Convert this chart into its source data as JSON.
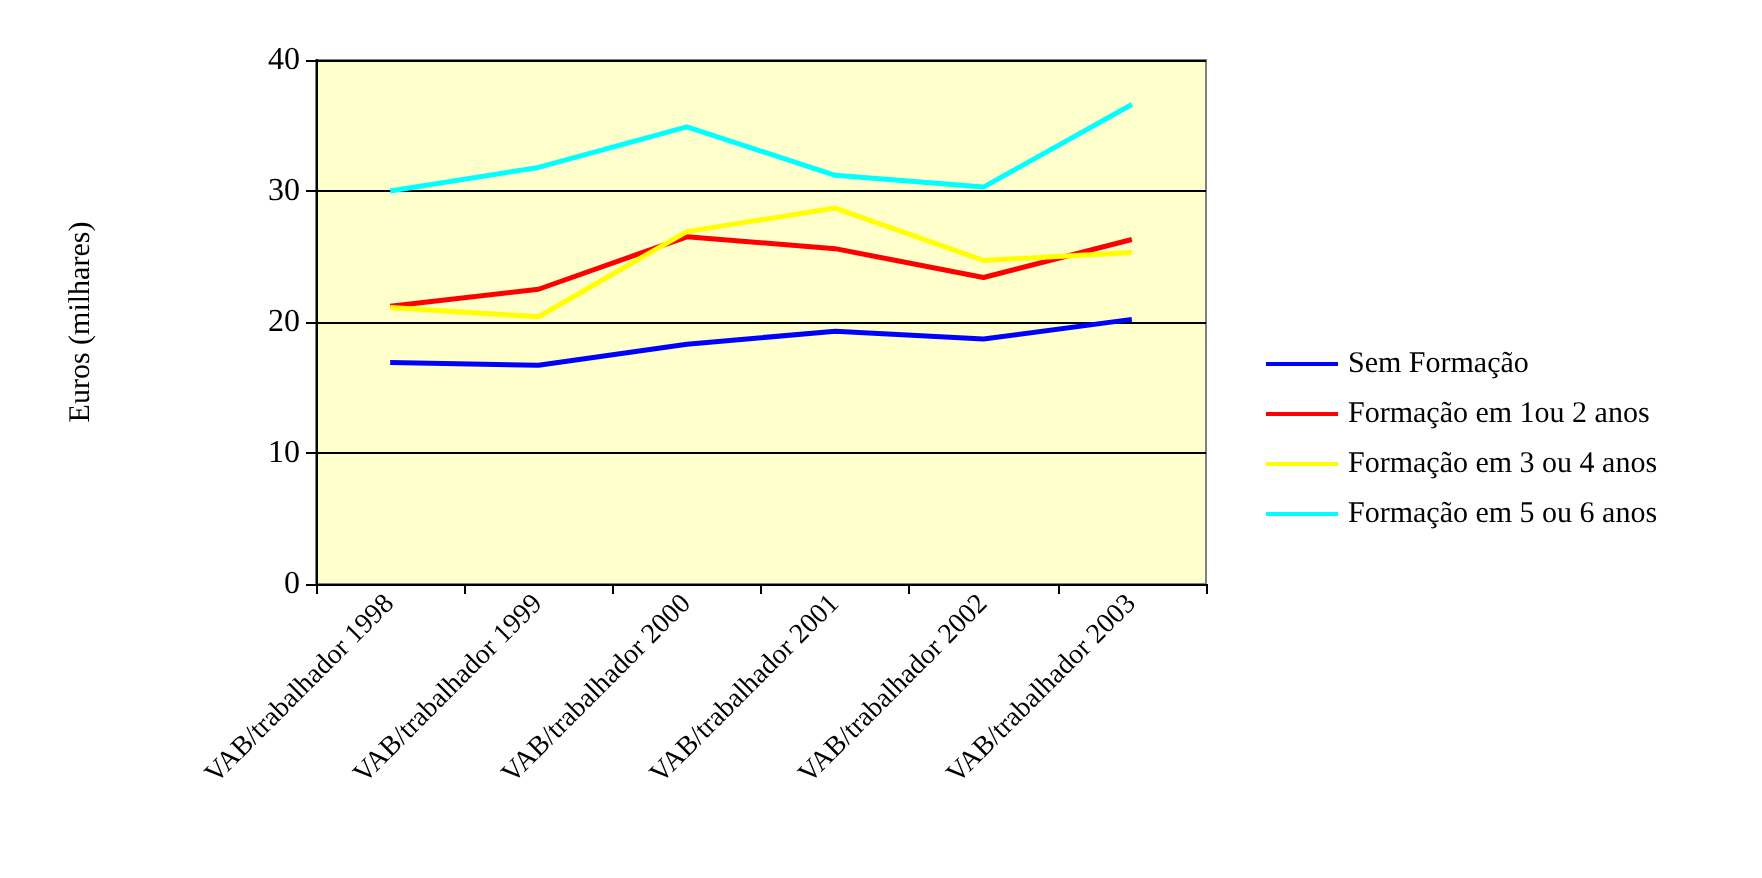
{
  "chart_data": {
    "type": "line",
    "ylabel": "Euros (milhares)",
    "categories": [
      "VAB/trabalhador 1998",
      "VAB/trabalhador 1999",
      "VAB/trabalhador 2000",
      "VAB/trabalhador 2001",
      "VAB/trabalhador 2002",
      "VAB/trabalhador 2003"
    ],
    "series": [
      {
        "name": "Sem Formação",
        "color": "#0000ff",
        "values": [
          16.9,
          16.7,
          18.3,
          19.3,
          18.7,
          20.2
        ]
      },
      {
        "name": "Formação em 1ou 2 anos",
        "color": "#ff0000",
        "values": [
          21.2,
          22.5,
          26.5,
          25.6,
          23.4,
          26.3
        ]
      },
      {
        "name": "Formação em 3 ou 4 anos",
        "color": "#ffff00",
        "values": [
          21.1,
          20.4,
          26.9,
          28.7,
          24.7,
          25.3
        ]
      },
      {
        "name": "Formação em 5 ou 6 anos",
        "color": "#00ffff",
        "values": [
          30.0,
          31.8,
          34.9,
          31.2,
          30.3,
          36.6
        ]
      }
    ],
    "ylim": [
      0,
      40
    ],
    "yticks": [
      0,
      10,
      20,
      30,
      40
    ],
    "grid": "y",
    "legend": "right",
    "marker": "none",
    "line_style": "solid"
  }
}
